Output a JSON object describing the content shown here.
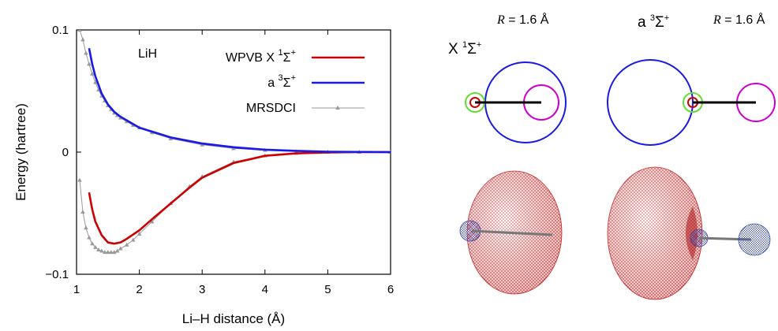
{
  "chart_data": {
    "type": "line",
    "annotation": "LiH",
    "xlabel": "Li–H distance (Å)",
    "ylabel": "Energy (hartree)",
    "xlim": [
      1,
      6
    ],
    "ylim": [
      -0.1,
      0.1
    ],
    "xticks": [
      "1",
      "2",
      "3",
      "4",
      "5",
      "6"
    ],
    "yticks": [
      "0.1",
      "0",
      "−0.1"
    ],
    "legend_position": "top-right",
    "series": [
      {
        "name_main": "WPVB  X ",
        "name_sup": "1",
        "name_tail": "Σ",
        "name_sup2": "+",
        "color": "#cc0000",
        "x": [
          1.2,
          1.25,
          1.3,
          1.4,
          1.5,
          1.6,
          1.7,
          1.8,
          2.0,
          2.2,
          2.5,
          2.8,
          3.0,
          3.5,
          4.0,
          4.5,
          5.0,
          5.5,
          6.0
        ],
        "y": [
          -0.033,
          -0.047,
          -0.057,
          -0.068,
          -0.074,
          -0.075,
          -0.074,
          -0.071,
          -0.064,
          -0.055,
          -0.042,
          -0.029,
          -0.021,
          -0.009,
          -0.003,
          -0.001,
          -0.0003,
          0,
          0
        ]
      },
      {
        "name_main": "a ",
        "name_sup": "3",
        "name_tail": "Σ",
        "name_sup2": "+",
        "color": "#1a1ae6",
        "x": [
          1.2,
          1.25,
          1.3,
          1.4,
          1.5,
          1.6,
          1.7,
          1.8,
          2.0,
          2.5,
          3.0,
          3.5,
          4.0,
          4.5,
          5.0,
          6.0
        ],
        "y": [
          0.085,
          0.072,
          0.062,
          0.048,
          0.039,
          0.033,
          0.029,
          0.026,
          0.02,
          0.012,
          0.007,
          0.004,
          0.002,
          0.001,
          0.0003,
          0
        ]
      },
      {
        "name_main": "MRSDCI",
        "color": "#999999",
        "markers": true,
        "x": [
          1.05,
          1.1,
          1.15,
          1.2,
          1.25,
          1.3,
          1.35,
          1.4,
          1.45,
          1.5,
          1.55,
          1.6,
          1.65,
          1.7,
          1.8,
          1.9,
          2.0,
          2.2,
          2.5,
          2.8,
          3.0,
          3.5,
          4.0,
          4.5,
          5.0,
          5.5,
          6.0
        ],
        "y": [
          -0.023,
          -0.049,
          -0.062,
          -0.07,
          -0.075,
          -0.078,
          -0.08,
          -0.081,
          -0.082,
          -0.082,
          -0.082,
          -0.082,
          -0.081,
          -0.079,
          -0.076,
          -0.072,
          -0.067,
          -0.057,
          -0.042,
          -0.028,
          -0.02,
          -0.008,
          -0.003,
          -0.001,
          0,
          0,
          0
        ]
      },
      {
        "name_main": "",
        "color": "#999999",
        "markers": true,
        "legend": false,
        "x": [
          1.05,
          1.1,
          1.15,
          1.2,
          1.25,
          1.3,
          1.35,
          1.4,
          1.45,
          1.5,
          1.55,
          1.6,
          1.65,
          1.7,
          1.8,
          1.9,
          2.0,
          2.2,
          2.5,
          3.0,
          3.5,
          4.0,
          4.5,
          5.0,
          6.0
        ],
        "y": [
          0.1,
          0.092,
          0.081,
          0.072,
          0.064,
          0.057,
          0.051,
          0.046,
          0.042,
          0.038,
          0.035,
          0.032,
          0.03,
          0.028,
          0.025,
          0.022,
          0.02,
          0.016,
          0.011,
          0.006,
          0.003,
          0.0015,
          0.0005,
          0,
          0
        ]
      }
    ]
  },
  "panels": {
    "left": {
      "state_main": "X ",
      "state_sup": "1",
      "state_tail": "Σ",
      "state_sup2": "+",
      "r_var": "R",
      "r_value": " =  1.6 Å"
    },
    "right": {
      "state_main": "a ",
      "state_sup": "3",
      "state_tail": "Σ",
      "state_sup2": "+",
      "r_var": "R",
      "r_value": " =  1.6 Å"
    },
    "colors": {
      "big_orbital": "#1a1ae6",
      "small_orbital": "#cc00cc",
      "core_inner": "#cc0000",
      "core_outer": "#66dd33",
      "bond": "#000000",
      "density_red": "#cc2222",
      "density_blue": "#3344aa"
    }
  }
}
